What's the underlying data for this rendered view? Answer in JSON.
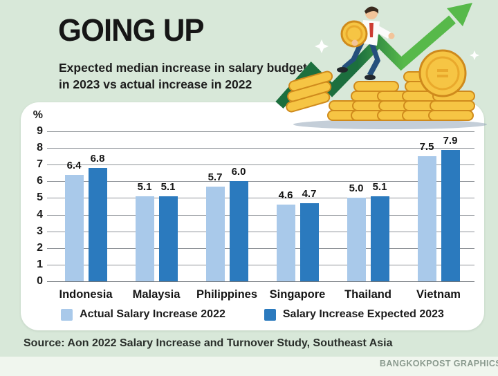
{
  "page": {
    "title": "GOING UP",
    "subtitle_line1": "Expected median increase in salary budgets",
    "subtitle_line2": "in 2023 vs actual increase in 2022",
    "source": "Source: Aon 2022 Salary Increase and Turnover Study, Southeast Asia",
    "credit": "BANGKOKPOST GRAPHICS"
  },
  "chart_data": {
    "type": "bar",
    "title": "GOING UP",
    "subtitle": "Expected median increase in salary budgets in 2023 vs actual increase in 2022",
    "categories": [
      "Indonesia",
      "Malaysia",
      "Philippines",
      "Singapore",
      "Thailand",
      "Vietnam"
    ],
    "series": [
      {
        "name": "Actual Salary Increase 2022",
        "color": "#a9c9ea",
        "values": [
          6.4,
          5.1,
          5.7,
          4.6,
          5.0,
          7.5
        ]
      },
      {
        "name": "Salary Increase Expected 2023",
        "color": "#2b7abe",
        "values": [
          6.8,
          5.1,
          6.0,
          4.7,
          5.1,
          7.9
        ]
      }
    ],
    "xlabel": "",
    "ylabel": "%",
    "ylim": [
      0,
      9
    ],
    "yticks": [
      0,
      1,
      2,
      3,
      4,
      5,
      6,
      7,
      8,
      9
    ],
    "grid": true,
    "value_labels": true,
    "legend_position": "bottom"
  },
  "colors": {
    "background": "#d8e8d9",
    "panel": "#ffffff",
    "bar_2022": "#a9c9ea",
    "bar_2023": "#2b7abe",
    "arrow_dark_green": "#1c6f3e",
    "arrow_bright_green": "#57b94a",
    "coin_gold": "#f6c544",
    "coin_rim": "#cf8a1c",
    "footer_strip": "#f0f6ee"
  },
  "icons": {
    "illustration": "man-climbing-coin-stacks-with-rising-arrow-icon"
  }
}
